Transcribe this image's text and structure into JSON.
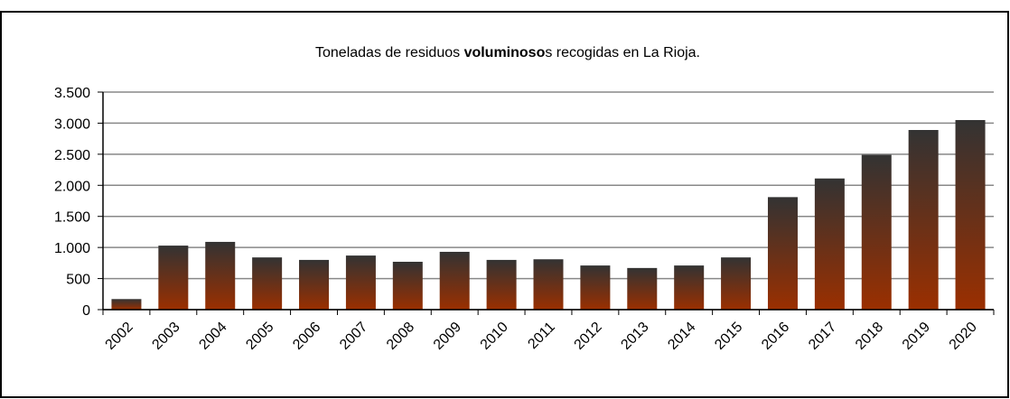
{
  "chart_data": {
    "type": "bar",
    "title": [
      "Toneladas de residuos ",
      "voluminoso",
      "s recogidas en La Rioja."
    ],
    "categories": [
      "2002",
      "2003",
      "2004",
      "2005",
      "2006",
      "2007",
      "2008",
      "2009",
      "2010",
      "2011",
      "2012",
      "2013",
      "2014",
      "2015",
      "2016",
      "2017",
      "2018",
      "2019",
      "2020"
    ],
    "values": [
      170,
      1030,
      1090,
      840,
      800,
      870,
      770,
      930,
      800,
      810,
      710,
      670,
      710,
      840,
      1810,
      2110,
      2490,
      2890,
      3050
    ],
    "color": "#9b2f00",
    "ylim": [
      0,
      3500
    ],
    "yticks": [
      0,
      500,
      {
        "value": 1000,
        "label": "1.000"
      },
      {
        "value": 1500,
        "label": "1.500"
      },
      {
        "value": 2000,
        "label": "2.000"
      },
      {
        "value": 2500,
        "label": "2.500"
      },
      {
        "value": 3000,
        "label": "3.000"
      },
      {
        "value": 3500,
        "label": "3.500"
      }
    ],
    "grid": true
  }
}
